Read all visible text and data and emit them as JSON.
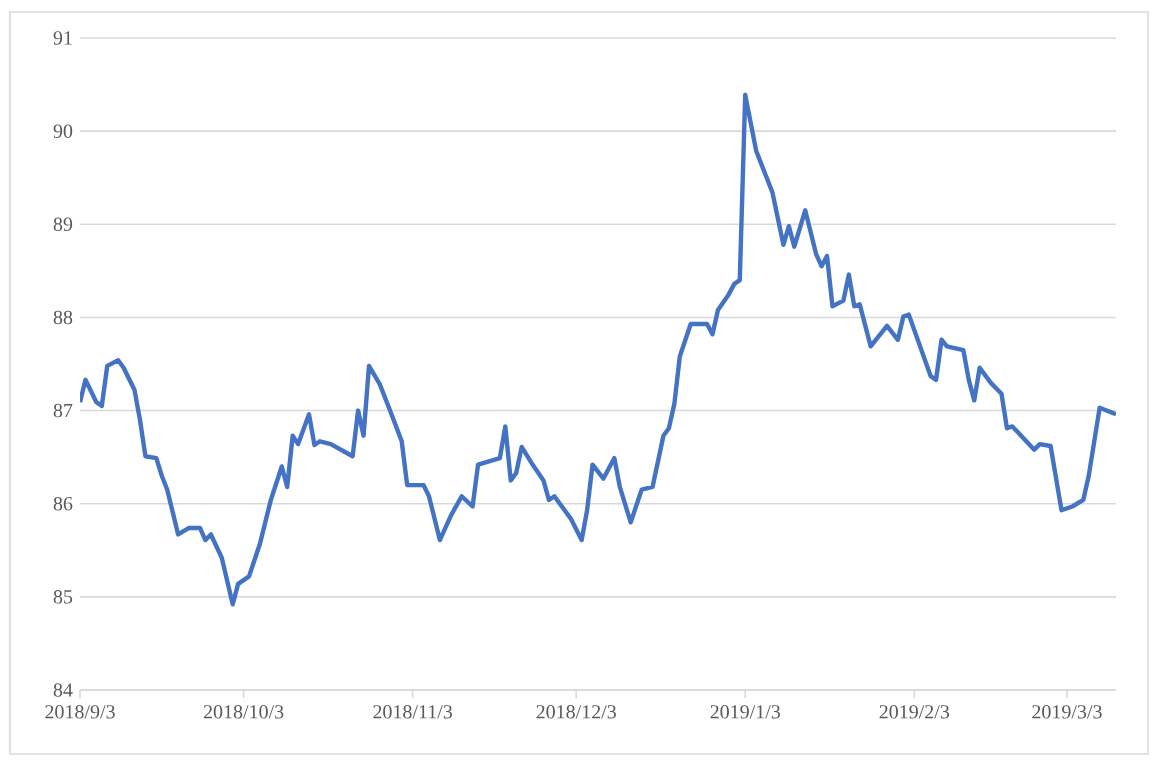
{
  "chart_data": {
    "type": "line",
    "color": "#4472c4",
    "grid": "y",
    "marker": "none",
    "line_style": "solid",
    "xlim": [
      "2018-09-03",
      "2019-03-12"
    ],
    "ylim": [
      84,
      91
    ],
    "yticks": [
      84,
      85,
      86,
      87,
      88,
      89,
      90,
      91
    ],
    "xticks": [
      {
        "value": "2018-09-03",
        "label": "2018/9/3"
      },
      {
        "value": "2018-10-03",
        "label": "2018/10/3"
      },
      {
        "value": "2018-11-03",
        "label": "2018/11/3"
      },
      {
        "value": "2018-12-03",
        "label": "2018/12/3"
      },
      {
        "value": "2019-01-03",
        "label": "2019/1/3"
      },
      {
        "value": "2019-02-03",
        "label": "2019/2/3"
      },
      {
        "value": "2019-03-03",
        "label": "2019/3/3"
      }
    ],
    "x": [
      "2018-09-03",
      "2018-09-04",
      "2018-09-06",
      "2018-09-07",
      "2018-09-08",
      "2018-09-10",
      "2018-09-11",
      "2018-09-13",
      "2018-09-14",
      "2018-09-15",
      "2018-09-17",
      "2018-09-18",
      "2018-09-19",
      "2018-09-21",
      "2018-09-23",
      "2018-09-25",
      "2018-09-26",
      "2018-09-27",
      "2018-09-29",
      "2018-10-01",
      "2018-10-02",
      "2018-10-04",
      "2018-10-06",
      "2018-10-08",
      "2018-10-10",
      "2018-10-11",
      "2018-10-12",
      "2018-10-13",
      "2018-10-15",
      "2018-10-16",
      "2018-10-17",
      "2018-10-19",
      "2018-10-23",
      "2018-10-24",
      "2018-10-25",
      "2018-10-26",
      "2018-10-28",
      "2018-10-30",
      "2018-11-01",
      "2018-11-02",
      "2018-11-05",
      "2018-11-06",
      "2018-11-08",
      "2018-11-10",
      "2018-11-12",
      "2018-11-14",
      "2018-11-15",
      "2018-11-19",
      "2018-11-20",
      "2018-11-21",
      "2018-11-22",
      "2018-11-23",
      "2018-11-25",
      "2018-11-27",
      "2018-11-28",
      "2018-11-29",
      "2018-12-02",
      "2018-12-04",
      "2018-12-05",
      "2018-12-06",
      "2018-12-08",
      "2018-12-10",
      "2018-12-11",
      "2018-12-13",
      "2018-12-15",
      "2018-12-17",
      "2018-12-19",
      "2018-12-20",
      "2018-12-21",
      "2018-12-22",
      "2018-12-24",
      "2018-12-27",
      "2018-12-28",
      "2018-12-29",
      "2018-12-31",
      "2019-01-01",
      "2019-01-02",
      "2019-01-03",
      "2019-01-05",
      "2019-01-08",
      "2019-01-10",
      "2019-01-11",
      "2019-01-12",
      "2019-01-14",
      "2019-01-16",
      "2019-01-17",
      "2019-01-18",
      "2019-01-19",
      "2019-01-21",
      "2019-01-22",
      "2019-01-23",
      "2019-01-24",
      "2019-01-26",
      "2019-01-29",
      "2019-01-31",
      "2019-02-01",
      "2019-02-02",
      "2019-02-06",
      "2019-02-07",
      "2019-02-08",
      "2019-02-09",
      "2019-02-12",
      "2019-02-13",
      "2019-02-14",
      "2019-02-15",
      "2019-02-17",
      "2019-02-19",
      "2019-02-20",
      "2019-02-21",
      "2019-02-25",
      "2019-02-26",
      "2019-02-28",
      "2019-03-02",
      "2019-03-04",
      "2019-03-06",
      "2019-03-07",
      "2019-03-09",
      "2019-03-12"
    ],
    "values": [
      87.09,
      87.33,
      87.09,
      87.05,
      87.48,
      87.54,
      87.46,
      87.22,
      86.9,
      86.51,
      86.49,
      86.3,
      86.15,
      85.67,
      85.74,
      85.74,
      85.61,
      85.67,
      85.42,
      84.92,
      85.14,
      85.22,
      85.57,
      86.04,
      86.4,
      86.18,
      86.73,
      86.64,
      86.96,
      86.63,
      86.67,
      86.64,
      86.51,
      87.0,
      86.73,
      87.48,
      87.28,
      86.98,
      86.67,
      86.2,
      86.2,
      86.08,
      85.61,
      85.87,
      86.08,
      85.97,
      86.42,
      86.49,
      86.83,
      86.25,
      86.33,
      86.61,
      86.42,
      86.25,
      86.04,
      86.08,
      85.84,
      85.61,
      85.93,
      86.42,
      86.27,
      86.49,
      86.18,
      85.8,
      86.15,
      86.18,
      86.73,
      86.81,
      87.07,
      87.58,
      87.93,
      87.93,
      87.82,
      88.08,
      88.25,
      88.36,
      88.4,
      90.39,
      89.79,
      89.34,
      88.78,
      88.98,
      88.76,
      89.15,
      88.68,
      88.55,
      88.66,
      88.12,
      88.18,
      88.46,
      88.12,
      88.14,
      87.69,
      87.91,
      87.76,
      88.01,
      88.03,
      87.37,
      87.33,
      87.76,
      87.69,
      87.65,
      87.33,
      87.11,
      87.46,
      87.3,
      87.18,
      86.81,
      86.83,
      86.58,
      86.64,
      86.62,
      85.93,
      85.97,
      86.04,
      86.3,
      87.03,
      86.96
    ]
  }
}
